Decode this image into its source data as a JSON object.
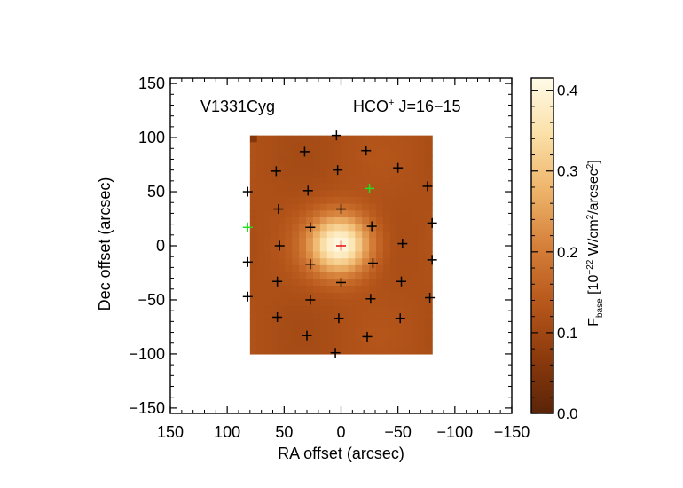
{
  "chart_data": {
    "type": "heatmap",
    "title_left": "V1331Cyg",
    "title_right_species": "HCO",
    "title_right_superscript": "+",
    "title_right_transition": " J=16−15",
    "xlabel": "RA offset (arcsec)",
    "ylabel": "Dec offset (arcsec)",
    "xlim": [
      150,
      -150
    ],
    "ylim": [
      -155,
      155
    ],
    "x_ticks": [
      150,
      100,
      50,
      0,
      -50,
      -100,
      -150
    ],
    "x_tick_labels": [
      "150",
      "100",
      "50",
      "0",
      "−50",
      "−100",
      "−150"
    ],
    "y_ticks": [
      150,
      100,
      50,
      0,
      -50,
      -100,
      -150
    ],
    "y_tick_labels": [
      "150",
      "100",
      "50",
      "0",
      "−50",
      "−100",
      "−150"
    ],
    "map_extent": {
      "x": [
        80,
        -80
      ],
      "y": [
        -100,
        102
      ]
    },
    "source": {
      "x0": 1,
      "y0": 1,
      "sigma": 19,
      "peak": 0.41,
      "base": 0.12
    },
    "colorbar": {
      "label_main": "F",
      "label_sub": "base",
      "label_unit_pre": " [10",
      "label_unit_exp": "−22",
      "label_unit_mid": " W/cm",
      "label_unit_exp2": "2",
      "label_unit_mid2": "/arcsec",
      "label_unit_exp3": "2",
      "label_unit_post": "]",
      "range": [
        0,
        0.415
      ],
      "ticks": [
        0.0,
        0.1,
        0.2,
        0.3,
        0.4
      ],
      "tick_labels": [
        "0.0",
        "0.1",
        "0.2",
        "0.3",
        "0.4"
      ],
      "colors": [
        "#5a2408",
        "#8c3a0c",
        "#b8581c",
        "#d5803a",
        "#eeb46a",
        "#fbe0a8",
        "#fffbe8"
      ]
    },
    "spaxels": [
      {
        "x": 4,
        "y": 102,
        "color": "black"
      },
      {
        "x": 32,
        "y": 87,
        "color": "black"
      },
      {
        "x": -22,
        "y": 88,
        "color": "black"
      },
      {
        "x": 57,
        "y": 69,
        "color": "black"
      },
      {
        "x": 3,
        "y": 70,
        "color": "black"
      },
      {
        "x": -50,
        "y": 72,
        "color": "black"
      },
      {
        "x": 82,
        "y": 50,
        "color": "black"
      },
      {
        "x": 29,
        "y": 51,
        "color": "black"
      },
      {
        "x": -25,
        "y": 53,
        "color": "green"
      },
      {
        "x": -76,
        "y": 55,
        "color": "black"
      },
      {
        "x": 55,
        "y": 34,
        "color": "black"
      },
      {
        "x": 0,
        "y": 34,
        "color": "black"
      },
      {
        "x": 82,
        "y": 17,
        "color": "green"
      },
      {
        "x": 27,
        "y": 17,
        "color": "black"
      },
      {
        "x": -27,
        "y": 18,
        "color": "black"
      },
      {
        "x": -80,
        "y": 21,
        "color": "black"
      },
      {
        "x": 54,
        "y": 0,
        "color": "black"
      },
      {
        "x": 0,
        "y": 0,
        "color": "red"
      },
      {
        "x": -54,
        "y": 2,
        "color": "black"
      },
      {
        "x": 82,
        "y": -15,
        "color": "black"
      },
      {
        "x": 27,
        "y": -17,
        "color": "black"
      },
      {
        "x": -28,
        "y": -16,
        "color": "black"
      },
      {
        "x": -80,
        "y": -13,
        "color": "black"
      },
      {
        "x": 56,
        "y": -33,
        "color": "black"
      },
      {
        "x": 0,
        "y": -34,
        "color": "black"
      },
      {
        "x": -53,
        "y": -33,
        "color": "black"
      },
      {
        "x": 82,
        "y": -47,
        "color": "black"
      },
      {
        "x": 27,
        "y": -50,
        "color": "black"
      },
      {
        "x": -26,
        "y": -49,
        "color": "black"
      },
      {
        "x": -78,
        "y": -48,
        "color": "black"
      },
      {
        "x": 56,
        "y": -66,
        "color": "black"
      },
      {
        "x": 2,
        "y": -67,
        "color": "black"
      },
      {
        "x": -52,
        "y": -67,
        "color": "black"
      },
      {
        "x": 30,
        "y": -83,
        "color": "black"
      },
      {
        "x": -23,
        "y": -84,
        "color": "black"
      },
      {
        "x": 5,
        "y": -99,
        "color": "black"
      }
    ]
  }
}
